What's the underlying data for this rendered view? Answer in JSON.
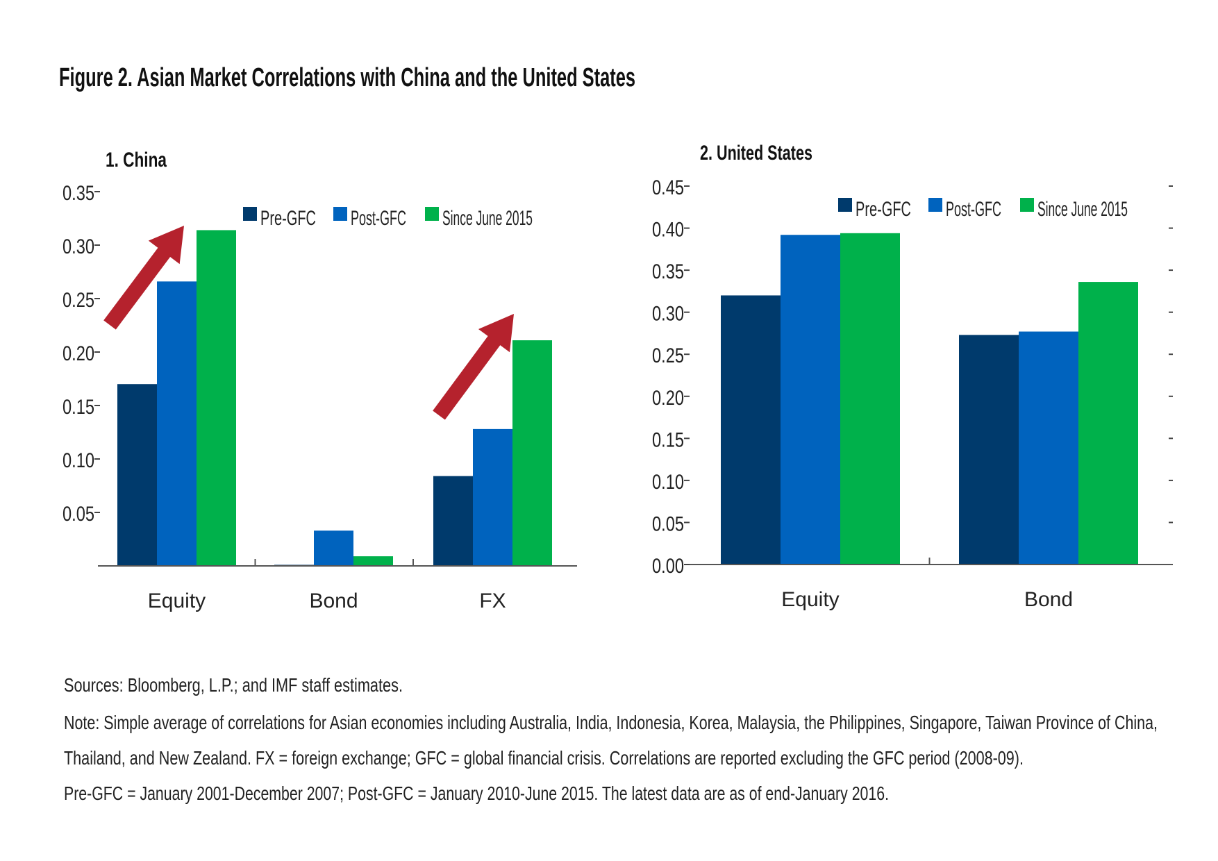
{
  "title": "Figure 2. Asian Market Correlations with China and the United States",
  "colors": {
    "Pre-GFC": "#003a6c",
    "Post-GFC": "#0063be",
    "Since June 2015": "#00b14b",
    "arrow": "#b5222d"
  },
  "chart_data": [
    {
      "type": "bar",
      "title": "1. China",
      "categories": [
        "Equity",
        "Bond",
        "FX"
      ],
      "series": [
        {
          "name": "Pre-GFC",
          "values": [
            0.17,
            0.001,
            0.084
          ]
        },
        {
          "name": "Post-GFC",
          "values": [
            0.266,
            0.033,
            0.128
          ]
        },
        {
          "name": "Since June 2015",
          "values": [
            0.314,
            0.009,
            0.211
          ]
        }
      ],
      "yticks": [
        "0.05",
        "0.10",
        "0.15",
        "0.20",
        "0.25",
        "0.30",
        "0.35"
      ],
      "ylim": [
        0,
        0.35
      ],
      "legend": "top-right",
      "annotations": [
        "up-arrow over Equity",
        "up-arrow over FX"
      ],
      "grid": false
    },
    {
      "type": "bar",
      "title": "2. United States",
      "categories": [
        "Equity",
        "Bond"
      ],
      "series": [
        {
          "name": "Pre-GFC",
          "values": [
            0.32,
            0.273
          ]
        },
        {
          "name": "Post-GFC",
          "values": [
            0.392,
            0.277
          ]
        },
        {
          "name": "Since June 2015",
          "values": [
            0.394,
            0.336
          ]
        }
      ],
      "yticks": [
        "0.00",
        "0.05",
        "0.10",
        "0.15",
        "0.20",
        "0.25",
        "0.30",
        "0.35",
        "0.40",
        "0.45"
      ],
      "ylim": [
        0,
        0.45
      ],
      "legend": "top-right",
      "grid": false
    }
  ],
  "sources": "Sources: Bloomberg, L.P.; and IMF staff estimates.",
  "note_lines": [
    "Note: Simple average of correlations for Asian economies including Australia, India, Indonesia, Korea, Malaysia, the Philippines, Singapore, Taiwan Province of China,",
    "Thailand, and New Zealand. FX = foreign exchange; GFC = global financial crisis. Correlations are reported excluding the GFC period (2008-09).",
    "Pre-GFC = January 2001-December 2007; Post-GFC = January 2010-June 2015. The latest data are as of end-January 2016."
  ]
}
